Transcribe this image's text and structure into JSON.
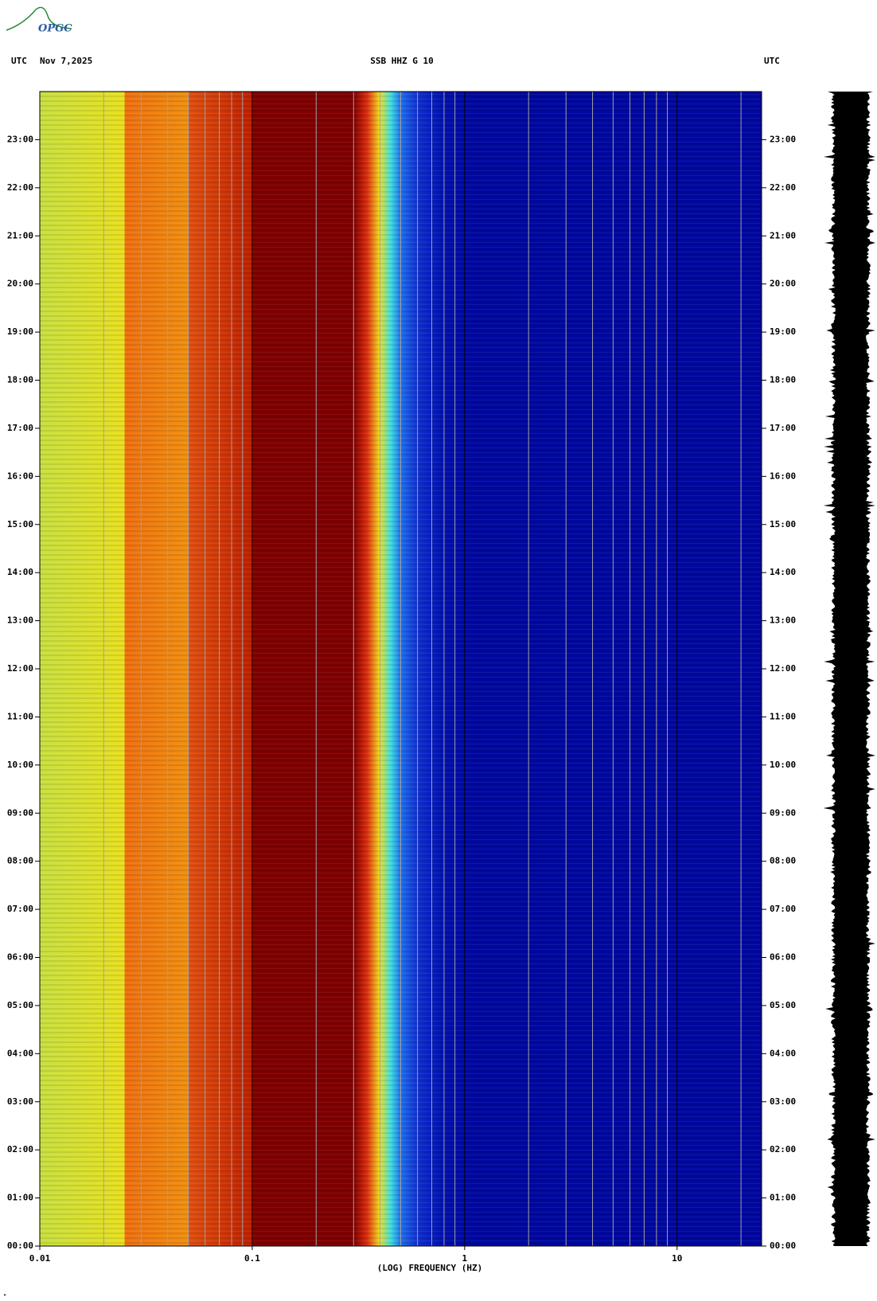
{
  "logo": "OPGC",
  "chart_data": {
    "type": "spectrogram",
    "title": "SSB HHZ G 10",
    "left_header": "UTC",
    "date": "Nov 7,2025",
    "right_header": "UTC",
    "xlabel": "(LOG) FREQUENCY (HZ)",
    "xscale": "log",
    "xlim": [
      0.01,
      25
    ],
    "xticks": [
      {
        "value": 0.01,
        "label": "0.01"
      },
      {
        "value": 0.1,
        "label": "0.1"
      },
      1,
      10
    ],
    "xgrid": [
      0.02,
      0.03,
      0.04,
      0.05,
      0.06,
      0.07,
      0.08,
      0.09,
      0.2,
      0.3,
      0.4,
      0.5,
      0.6,
      0.7,
      0.8,
      0.9,
      2,
      3,
      4,
      5,
      6,
      7,
      8,
      9,
      20
    ],
    "ylim": [
      0,
      24
    ],
    "yticks": [
      {
        "value": 0,
        "label": "00:00"
      },
      {
        "value": 1,
        "label": "01:00"
      },
      {
        "value": 2,
        "label": "02:00"
      },
      {
        "value": 3,
        "label": "03:00"
      },
      {
        "value": 4,
        "label": "04:00"
      },
      {
        "value": 5,
        "label": "05:00"
      },
      {
        "value": 6,
        "label": "06:00"
      },
      {
        "value": 7,
        "label": "07:00"
      },
      {
        "value": 8,
        "label": "08:00"
      },
      {
        "value": 9,
        "label": "09:00"
      },
      {
        "value": 10,
        "label": "10:00"
      },
      {
        "value": 11,
        "label": "11:00"
      },
      {
        "value": 12,
        "label": "12:00"
      },
      {
        "value": 13,
        "label": "13:00"
      },
      {
        "value": 14,
        "label": "14:00"
      },
      {
        "value": 15,
        "label": "15:00"
      },
      {
        "value": 16,
        "label": "16:00"
      },
      {
        "value": 17,
        "label": "17:00"
      },
      {
        "value": 18,
        "label": "18:00"
      },
      {
        "value": 19,
        "label": "19:00"
      },
      {
        "value": 20,
        "label": "20:00"
      },
      {
        "value": 21,
        "label": "21:00"
      },
      {
        "value": 22,
        "label": "22:00"
      },
      {
        "value": 23,
        "label": "23:00"
      }
    ],
    "grid_color": "#a0a0a0"
  }
}
